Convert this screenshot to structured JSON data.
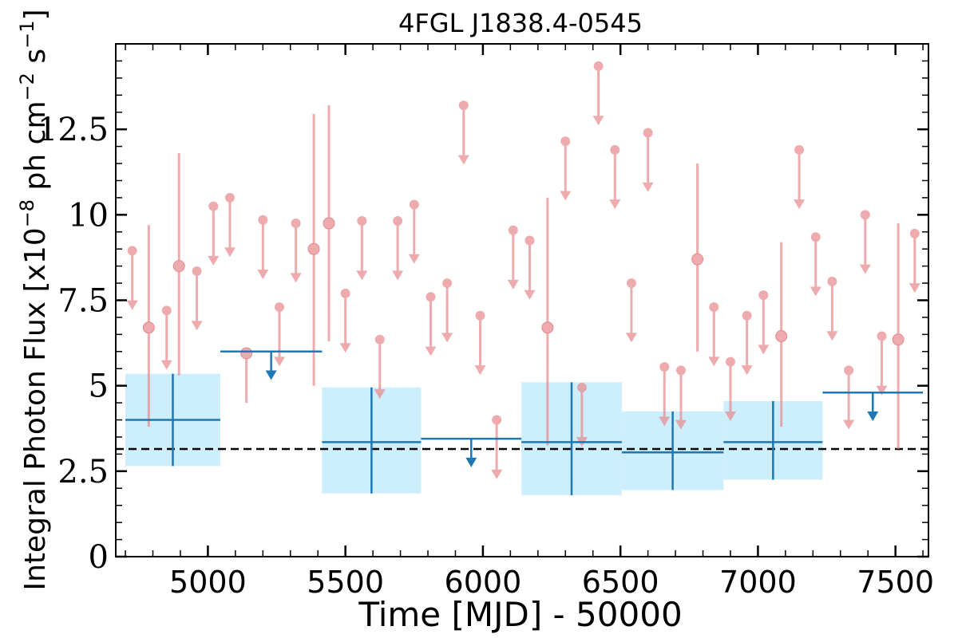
{
  "chart_data": {
    "type": "scatter",
    "title": "4FGL J1838.4-0545",
    "xlabel": "Time [MJD] - 50000",
    "ylabel_main": "Integral Photon Flux [x10",
    "ylabel_exp1": "−8",
    "ylabel_mid": " ph cm",
    "ylabel_exp2": "−2",
    "ylabel_end": " s",
    "ylabel_exp3": "−1",
    "ylabel_close": "]",
    "xlim": [
      4665,
      7620
    ],
    "ylim": [
      0,
      15
    ],
    "xticks": [
      5000,
      5500,
      6000,
      6500,
      7000,
      7500
    ],
    "xtick_labels": [
      "5000",
      "5500",
      "6000",
      "6500",
      "7000",
      "7500"
    ],
    "yticks": [
      0,
      2.5,
      5,
      7.5,
      10,
      12.5
    ],
    "ytick_labels": [
      "0",
      "2.5",
      "5",
      "7.5",
      "10",
      "12.5"
    ],
    "reference_line": 3.15,
    "colors": {
      "fine": "#e8888b",
      "fine_alpha": 0.7,
      "coarse": "#1f77b4",
      "box": "#cdeefc",
      "reference": "#000000"
    },
    "fine_upper_limits": [
      [
        4725,
        8.95
      ],
      [
        4850,
        7.2
      ],
      [
        4960,
        8.35
      ],
      [
        5020,
        10.25
      ],
      [
        5080,
        10.5
      ],
      [
        5200,
        9.85
      ],
      [
        5260,
        7.3
      ],
      [
        5320,
        9.75
      ],
      [
        5500,
        7.7
      ],
      [
        5560,
        9.82
      ],
      [
        5625,
        6.35
      ],
      [
        5690,
        9.82
      ],
      [
        5750,
        10.3
      ],
      [
        5810,
        7.6
      ],
      [
        5870,
        8.0
      ],
      [
        5930,
        13.2
      ],
      [
        5990,
        7.05
      ],
      [
        6050,
        4.0
      ],
      [
        6110,
        9.55
      ],
      [
        6170,
        9.25
      ],
      [
        6300,
        12.15
      ],
      [
        6360,
        4.95
      ],
      [
        6420,
        14.35
      ],
      [
        6480,
        11.9
      ],
      [
        6540,
        8.0
      ],
      [
        6600,
        12.4
      ],
      [
        6660,
        5.55
      ],
      [
        6720,
        5.45
      ],
      [
        6840,
        7.3
      ],
      [
        6900,
        5.7
      ],
      [
        6960,
        7.05
      ],
      [
        7020,
        7.65
      ],
      [
        7150,
        11.9
      ],
      [
        7210,
        9.35
      ],
      [
        7270,
        8.05
      ],
      [
        7330,
        5.45
      ],
      [
        7390,
        10.0
      ],
      [
        7450,
        6.45
      ],
      [
        7570,
        9.45
      ]
    ],
    "fine_detections": [
      {
        "x": 4785,
        "y": 6.7,
        "lo": 3.8,
        "hi": 9.7
      },
      {
        "x": 4895,
        "y": 8.5,
        "lo": 5.3,
        "hi": 11.8
      },
      {
        "x": 5140,
        "y": 5.95,
        "lo": 4.5,
        "hi": 5.95
      },
      {
        "x": 5385,
        "y": 9.0,
        "lo": 5.0,
        "hi": 12.95
      },
      {
        "x": 5440,
        "y": 9.75,
        "lo": 6.3,
        "hi": 13.2
      },
      {
        "x": 6235,
        "y": 6.7,
        "lo": 3.25,
        "hi": 10.5
      },
      {
        "x": 6780,
        "y": 8.7,
        "lo": 6.0,
        "hi": 11.5
      },
      {
        "x": 7085,
        "y": 6.45,
        "lo": 3.8,
        "hi": 9.2
      },
      {
        "x": 7510,
        "y": 6.35,
        "lo": 3.15,
        "hi": 9.75
      }
    ],
    "coarse_detections": [
      {
        "x0": 4700,
        "x1": 5045,
        "y": 4.0,
        "lo": 2.65,
        "hi": 5.35
      },
      {
        "x0": 5415,
        "x1": 5775,
        "y": 3.35,
        "lo": 1.85,
        "hi": 4.95
      },
      {
        "x0": 6140,
        "x1": 6505,
        "y": 3.35,
        "lo": 1.8,
        "hi": 5.1
      },
      {
        "x0": 6505,
        "x1": 6875,
        "y": 3.05,
        "lo": 1.95,
        "hi": 4.25
      },
      {
        "x0": 6875,
        "x1": 7235,
        "y": 3.35,
        "lo": 2.25,
        "hi": 4.55
      }
    ],
    "coarse_upper_limits": [
      {
        "x0": 5045,
        "x1": 5415,
        "y": 6.0
      },
      {
        "x0": 5775,
        "x1": 6140,
        "y": 3.45
      },
      {
        "x0": 7235,
        "x1": 7600,
        "y": 4.8
      }
    ]
  }
}
